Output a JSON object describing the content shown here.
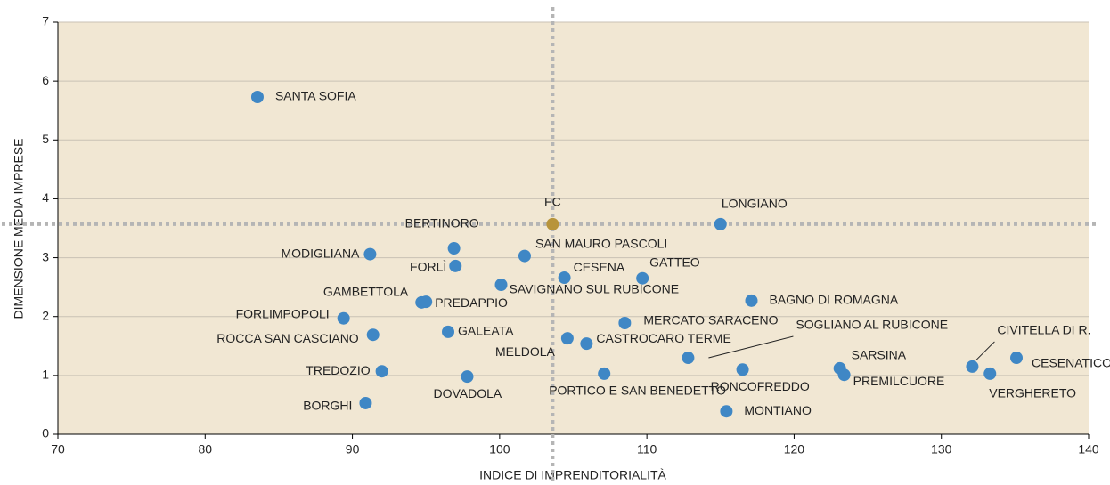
{
  "chart_data": {
    "type": "scatter",
    "xlabel": "INDICE DI IMPRENDITORIALITÀ",
    "ylabel": "DIMENSIONE MEDIA IMPRESE",
    "point_labels": [
      "SANTA SOFIA",
      "FC",
      "LONGIANO",
      "BERTINORO",
      "MODIGLIANA",
      "SAN MAURO PASCOLI",
      "FORLÌ",
      "CESENA",
      "GATTEO",
      "SAVIGNANO SUL RUBICONE",
      "GAMBETTOLA",
      "PREDAPPIO",
      "BAGNO DI ROMAGNA",
      "FORLIMPOPOLI",
      "MERCATO SARACENO",
      "ROCCA SAN CASCIANO",
      "GALEATA",
      "MELDOLA",
      "CASTROCARO TERME",
      "SOGLIANO AL RUBICONE",
      "RONCOFREDDO",
      "SARSINA",
      "PREMILCUORE",
      "CIVITELLA DI R.",
      "CESENATICO",
      "VERGHERETO",
      "TREDOZIO",
      "DOVADOLA",
      "PORTICO E SAN BENEDETTO",
      "BORGHI",
      "MONTIANO"
    ],
    "x": [
      83.55,
      103.6,
      115.0,
      96.9,
      91.2,
      101.7,
      97.0,
      104.4,
      109.7,
      100.1,
      94.7,
      95.0,
      117.1,
      89.4,
      108.5,
      91.4,
      96.5,
      104.6,
      105.9,
      112.8,
      116.5,
      123.1,
      123.4,
      132.1,
      135.1,
      133.3,
      92.0,
      97.8,
      107.1,
      90.9,
      115.4
    ],
    "values": [
      5.73,
      3.57,
      3.57,
      3.16,
      3.06,
      3.03,
      2.86,
      2.66,
      2.65,
      2.54,
      2.24,
      2.25,
      2.27,
      1.97,
      1.89,
      1.69,
      1.74,
      1.63,
      1.54,
      1.3,
      1.1,
      1.12,
      1.01,
      1.15,
      1.3,
      1.03,
      1.07,
      0.98,
      1.03,
      0.53,
      0.39
    ],
    "colors": [
      "#3f87c5",
      "#b8943a",
      "#3f87c5",
      "#3f87c5",
      "#3f87c5",
      "#3f87c5",
      "#3f87c5",
      "#3f87c5",
      "#3f87c5",
      "#3f87c5",
      "#3f87c5",
      "#3f87c5",
      "#3f87c5",
      "#3f87c5",
      "#3f87c5",
      "#3f87c5",
      "#3f87c5",
      "#3f87c5",
      "#3f87c5",
      "#3f87c5",
      "#3f87c5",
      "#3f87c5",
      "#3f87c5",
      "#3f87c5",
      "#3f87c5",
      "#3f87c5",
      "#3f87c5",
      "#3f87c5",
      "#3f87c5",
      "#3f87c5",
      "#3f87c5"
    ],
    "reference_x": 103.6,
    "reference_y": 3.57,
    "xlim": [
      70,
      140
    ],
    "xticks": [
      70,
      80,
      90,
      100,
      110,
      120,
      130,
      140
    ],
    "ylim": [
      0,
      7
    ],
    "yticks": [
      0,
      1,
      2,
      3,
      4,
      5,
      6,
      7
    ],
    "grid": true
  }
}
